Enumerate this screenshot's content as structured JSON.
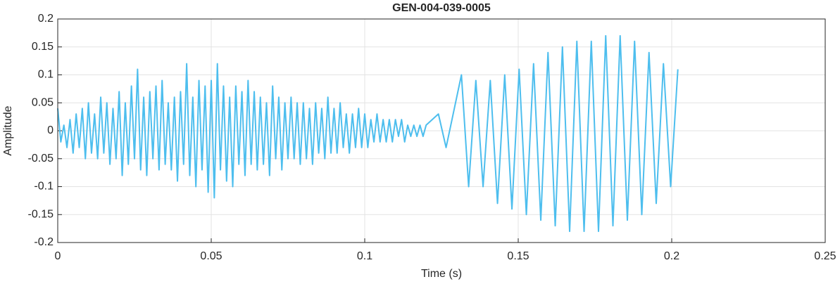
{
  "chart_data": {
    "type": "line",
    "title": "GEN-004-039-0005",
    "xlabel": "Time (s)",
    "ylabel": "Amplitude",
    "color": "#4dbeee",
    "grid": true,
    "xlim": [
      0,
      0.25
    ],
    "xticks": [
      0,
      0.05,
      0.1,
      0.15,
      0.2,
      0.25
    ],
    "ylim": [
      -0.2,
      0.2
    ],
    "yticks": [
      -0.2,
      -0.15,
      -0.1,
      -0.05,
      0,
      0.05,
      0.1,
      0.15,
      0.2
    ],
    "x": [
      0,
      0.001,
      0.002,
      0.003,
      0.004,
      0.005,
      0.006,
      0.007,
      0.008,
      0.009,
      0.01,
      0.011,
      0.012,
      0.013,
      0.014,
      0.015,
      0.016,
      0.017,
      0.018,
      0.019,
      0.02,
      0.021,
      0.022,
      0.023,
      0.024,
      0.025,
      0.026,
      0.027,
      0.028,
      0.029,
      0.03,
      0.031,
      0.032,
      0.033,
      0.034,
      0.035,
      0.036,
      0.037,
      0.038,
      0.039,
      0.04,
      0.041,
      0.042,
      0.043,
      0.044,
      0.045,
      0.046,
      0.047,
      0.048,
      0.049,
      0.05,
      0.051,
      0.052,
      0.053,
      0.054,
      0.055,
      0.056,
      0.057,
      0.058,
      0.059,
      0.06,
      0.061,
      0.062,
      0.063,
      0.064,
      0.065,
      0.066,
      0.067,
      0.068,
      0.069,
      0.07,
      0.071,
      0.072,
      0.073,
      0.074,
      0.075,
      0.076,
      0.077,
      0.078,
      0.079,
      0.08,
      0.081,
      0.082,
      0.083,
      0.084,
      0.085,
      0.086,
      0.087,
      0.088,
      0.089,
      0.09,
      0.091,
      0.092,
      0.093,
      0.094,
      0.095,
      0.096,
      0.097,
      0.098,
      0.099,
      0.1,
      0.101,
      0.102,
      0.103,
      0.104,
      0.105,
      0.106,
      0.107,
      0.108,
      0.109,
      0.11,
      0.111,
      0.112,
      0.113,
      0.114,
      0.115,
      0.116,
      0.117,
      0.118,
      0.119,
      0.12,
      0.124,
      0.1265,
      0.1315,
      0.13385,
      0.1362,
      0.13855,
      0.1409,
      0.14325,
      0.1456,
      0.14795,
      0.1503,
      0.15265,
      0.155,
      0.15735,
      0.1597,
      0.16205,
      0.1644,
      0.16675,
      0.1691,
      0.17145,
      0.1738,
      0.17615,
      0.1785,
      0.18085,
      0.1832,
      0.18555,
      0.1879,
      0.19025,
      0.1926,
      0.19495,
      0.1973,
      0.19965,
      0.202
    ],
    "values": [
      0.04,
      -0.02,
      0.01,
      -0.03,
      0.02,
      -0.04,
      0.03,
      -0.03,
      0.04,
      -0.05,
      0.05,
      -0.04,
      0.03,
      -0.05,
      0.06,
      -0.04,
      0.05,
      -0.06,
      0.04,
      -0.05,
      0.07,
      -0.08,
      0.05,
      -0.06,
      0.08,
      -0.05,
      0.11,
      -0.07,
      0.06,
      -0.08,
      0.07,
      -0.05,
      0.08,
      -0.07,
      0.09,
      -0.06,
      0.05,
      -0.07,
      0.06,
      -0.09,
      0.07,
      -0.06,
      0.12,
      -0.08,
      0.06,
      -0.1,
      0.09,
      -0.07,
      0.08,
      -0.11,
      0.09,
      -0.12,
      0.12,
      -0.07,
      0.08,
      -0.09,
      0.06,
      -0.1,
      0.08,
      -0.06,
      0.07,
      -0.08,
      0.09,
      -0.06,
      0.07,
      -0.07,
      0.06,
      -0.06,
      0.05,
      -0.08,
      0.08,
      -0.05,
      0.06,
      -0.07,
      0.05,
      -0.05,
      0.06,
      -0.05,
      0.05,
      -0.06,
      0.05,
      -0.05,
      0.04,
      -0.06,
      0.05,
      -0.04,
      0.04,
      -0.05,
      0.06,
      -0.04,
      0.04,
      -0.04,
      0.05,
      -0.03,
      0.03,
      -0.04,
      0.03,
      -0.03,
      0.04,
      -0.03,
      0.03,
      -0.03,
      0.02,
      -0.02,
      0.03,
      -0.02,
      0.02,
      -0.02,
      0.02,
      -0.02,
      0.02,
      -0.01,
      0.02,
      -0.02,
      0.01,
      -0.01,
      0.01,
      -0.01,
      0.01,
      -0.01,
      0.01,
      0.03,
      -0.03,
      0.1,
      -0.1,
      0.09,
      -0.1,
      0.09,
      -0.13,
      0.1,
      -0.14,
      0.11,
      -0.15,
      0.12,
      -0.16,
      0.14,
      -0.17,
      0.15,
      -0.18,
      0.16,
      -0.18,
      0.16,
      -0.18,
      0.17,
      -0.17,
      0.17,
      -0.16,
      0.16,
      -0.15,
      0.14,
      -0.13,
      0.12,
      -0.1,
      0.11
    ]
  }
}
